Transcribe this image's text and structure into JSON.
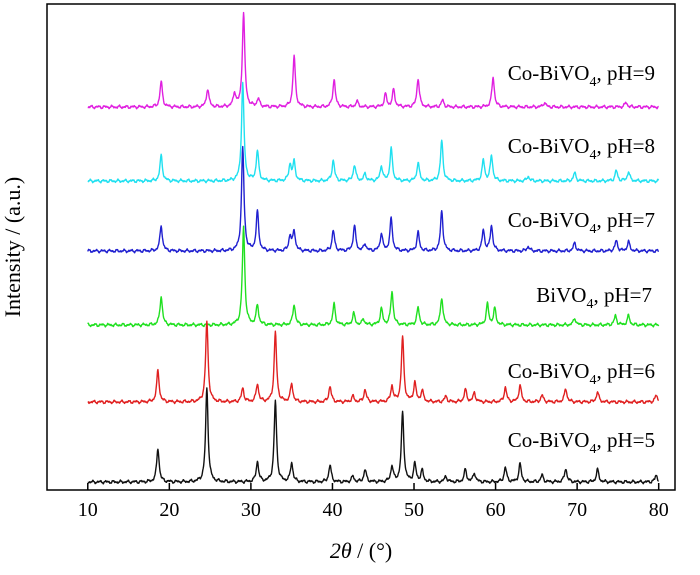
{
  "chart_data": {
    "type": "line",
    "xlabel": {
      "italic": "2θ",
      "rest": " / (°)"
    },
    "ylabel": "Intensity / (a.u.)",
    "xlim": [
      5,
      82
    ],
    "x_ticks": [
      10,
      20,
      30,
      40,
      50,
      60,
      70,
      80
    ],
    "x_tick_labels": [
      "10",
      "20",
      "30",
      "40",
      "50",
      "60",
      "70",
      "80"
    ],
    "y_ticks_shown": false,
    "grid": false,
    "series": [
      {
        "name": "Co-BiVO4, pH=9",
        "label": {
          "a": "Co-BiVO",
          "sub": "4",
          "b": ", pH=9"
        },
        "color": "#e020e0",
        "peaks": [
          [
            19.0,
            22
          ],
          [
            24.7,
            16
          ],
          [
            28.0,
            12
          ],
          [
            29.1,
            82
          ],
          [
            30.9,
            7
          ],
          [
            35.3,
            44
          ],
          [
            40.2,
            24
          ],
          [
            43.0,
            5
          ],
          [
            46.5,
            11
          ],
          [
            47.5,
            15
          ],
          [
            50.5,
            25
          ],
          [
            53.5,
            6
          ],
          [
            59.7,
            26
          ],
          [
            66.0,
            4
          ],
          [
            76.0,
            4
          ]
        ]
      },
      {
        "name": "Co-BiVO4, pH=8",
        "label": {
          "a": "Co-BiVO",
          "sub": "4",
          "b": ", pH=8"
        },
        "color": "#20e0f0",
        "peaks": [
          [
            19.0,
            22
          ],
          [
            29.0,
            85
          ],
          [
            30.8,
            26
          ],
          [
            34.8,
            14
          ],
          [
            35.3,
            16
          ],
          [
            40.1,
            18
          ],
          [
            42.7,
            14
          ],
          [
            44.0,
            6
          ],
          [
            46.0,
            13
          ],
          [
            47.2,
            28
          ],
          [
            50.5,
            16
          ],
          [
            53.4,
            35
          ],
          [
            58.5,
            18
          ],
          [
            59.5,
            22
          ],
          [
            64.0,
            4
          ],
          [
            69.7,
            7
          ],
          [
            74.8,
            9
          ],
          [
            76.3,
            8
          ]
        ]
      },
      {
        "name": "Co-BiVO4, pH=7",
        "label": {
          "a": "Co-BiVO",
          "sub": "4",
          "b": ", pH=7"
        },
        "color": "#2020d0",
        "peaks": [
          [
            19.0,
            22
          ],
          [
            29.0,
            90
          ],
          [
            30.8,
            34
          ],
          [
            34.8,
            13
          ],
          [
            35.3,
            17
          ],
          [
            40.1,
            18
          ],
          [
            42.7,
            22
          ],
          [
            44.0,
            6
          ],
          [
            46.0,
            15
          ],
          [
            47.2,
            28
          ],
          [
            50.5,
            16
          ],
          [
            53.4,
            35
          ],
          [
            58.5,
            18
          ],
          [
            59.5,
            22
          ],
          [
            64.0,
            4
          ],
          [
            69.7,
            7
          ],
          [
            74.8,
            9
          ],
          [
            76.3,
            8
          ]
        ]
      },
      {
        "name": "BiVO4, pH=7",
        "label": {
          "a": "BiVO",
          "sub": "4",
          "b": ", pH=7"
        },
        "color": "#20e020",
        "peaks": [
          [
            19.0,
            25
          ],
          [
            29.1,
            85
          ],
          [
            30.8,
            17
          ],
          [
            35.3,
            18
          ],
          [
            40.2,
            18
          ],
          [
            42.6,
            10
          ],
          [
            43.8,
            5
          ],
          [
            46.0,
            14
          ],
          [
            47.3,
            29
          ],
          [
            50.5,
            15
          ],
          [
            53.4,
            24
          ],
          [
            59.0,
            18
          ],
          [
            59.9,
            14
          ],
          [
            69.7,
            6
          ],
          [
            74.7,
            8
          ],
          [
            76.3,
            8
          ]
        ]
      },
      {
        "name": "Co-BiVO4, pH=6",
        "label": {
          "a": "Co-BiVO",
          "sub": "4",
          "b": ", pH=6"
        },
        "color": "#e02020",
        "peaks": [
          [
            18.6,
            28
          ],
          [
            24.6,
            72
          ],
          [
            29.0,
            12
          ],
          [
            30.8,
            16
          ],
          [
            33.0,
            62
          ],
          [
            35.0,
            16
          ],
          [
            39.7,
            14
          ],
          [
            42.5,
            5
          ],
          [
            44.0,
            11
          ],
          [
            47.3,
            14
          ],
          [
            48.6,
            58
          ],
          [
            50.1,
            17
          ],
          [
            51.0,
            10
          ],
          [
            53.9,
            5
          ],
          [
            56.3,
            11
          ],
          [
            57.4,
            8
          ],
          [
            61.2,
            13
          ],
          [
            63.0,
            15
          ],
          [
            65.7,
            6
          ],
          [
            68.6,
            12
          ],
          [
            72.5,
            9
          ],
          [
            79.7,
            6
          ]
        ]
      },
      {
        "name": "Co-BiVO4, pH=5",
        "label": {
          "a": "Co-BiVO",
          "sub": "4",
          "b": ", pH=5"
        },
        "color": "#111111",
        "peaks": [
          [
            18.6,
            30
          ],
          [
            24.6,
            84
          ],
          [
            30.8,
            18
          ],
          [
            33.0,
            72
          ],
          [
            35.0,
            17
          ],
          [
            39.7,
            15
          ],
          [
            42.5,
            5
          ],
          [
            44.0,
            11
          ],
          [
            47.3,
            14
          ],
          [
            48.6,
            62
          ],
          [
            50.1,
            16
          ],
          [
            51.0,
            10
          ],
          [
            53.9,
            5
          ],
          [
            56.3,
            11
          ],
          [
            57.4,
            8
          ],
          [
            61.2,
            13
          ],
          [
            63.0,
            16
          ],
          [
            65.7,
            6
          ],
          [
            68.6,
            12
          ],
          [
            72.5,
            11
          ],
          [
            79.7,
            6
          ]
        ]
      }
    ]
  }
}
